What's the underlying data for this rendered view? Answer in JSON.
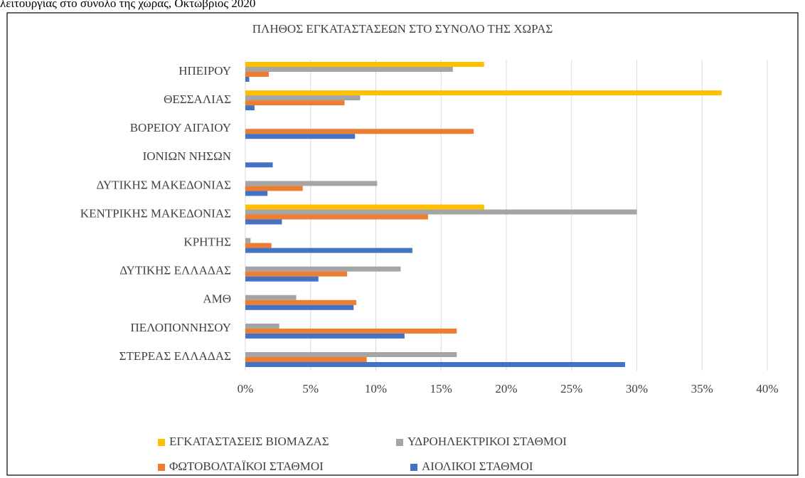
{
  "caption": "λειτουργίας στο σύνολο της χώρας, Οκτώβριος 2020",
  "chart_data": {
    "type": "hbar",
    "title": "ΠΛΗΘΟΣ ΕΓΚΑΤΑΣΤΑΣΕΩΝ  ΣΤΟ ΣΥΝΟΛΟ ΤΗΣ ΧΩΡΑΣ",
    "categories": [
      "ΗΠΕΙΡΟΥ",
      "ΘΕΣΣΑΛΙΑΣ",
      "ΒΟΡΕΙΟΥ ΑΙΓΑΙΟΥ",
      "ΙΟΝΙΩΝ ΝΗΣΩΝ",
      "ΔΥΤΙΚΗΣ ΜΑΚΕΔΟΝΙΑΣ",
      "ΚΕΝΤΡΙΚΗΣ ΜΑΚΕΔΟΝΙΑΣ",
      "ΚΡΗΤΗΣ",
      "ΔΥΤΙΚΗΣ ΕΛΛΑΔΑΣ",
      "ΑΜΘ",
      "ΠΕΛΟΠΟΝΝΗΣΟΥ",
      "ΣΤΕΡΕΑΣ ΕΛΛΑΔΑΣ"
    ],
    "series": [
      {
        "name": "ΕΓΚΑΤΑΣΤΑΣΕΙΣ  ΒΙΟΜΑΖΑΣ",
        "color": "#ffc000",
        "values": [
          18.3,
          36.5,
          0,
          0,
          0,
          18.3,
          0,
          0,
          0,
          0,
          0
        ]
      },
      {
        "name": "ΥΔΡΟΗΛΕΚΤΡΙΚΟΙ ΣΤΑΘΜΟΙ",
        "color": "#a5a5a5",
        "values": [
          15.9,
          8.8,
          0,
          0,
          10.1,
          30.0,
          0.4,
          11.9,
          3.9,
          2.6,
          16.2
        ]
      },
      {
        "name": "ΦΩΤΟΒΟΛΤΑΪΚΟΙ ΣΤΑΘΜΟΙ",
        "color": "#ed7d31",
        "values": [
          1.8,
          7.6,
          17.5,
          0,
          4.4,
          14.0,
          2.0,
          7.8,
          8.5,
          16.2,
          9.3
        ]
      },
      {
        "name": "ΑΙΟΛΙΚΟΙ ΣΤΑΘΜΟΙ",
        "color": "#4472c4",
        "values": [
          0.3,
          0.7,
          8.4,
          2.1,
          1.7,
          2.8,
          12.8,
          5.6,
          8.3,
          12.2,
          29.1
        ]
      }
    ],
    "xlim": [
      0,
      40
    ],
    "xticks": [
      {
        "value": 0,
        "label": "0%"
      },
      {
        "value": 5,
        "label": "5%"
      },
      {
        "value": 10,
        "label": "10%"
      },
      {
        "value": 15,
        "label": "15%"
      },
      {
        "value": 20,
        "label": "20%"
      },
      {
        "value": 25,
        "label": "25%"
      },
      {
        "value": 30,
        "label": "30%"
      },
      {
        "value": 35,
        "label": "35%"
      },
      {
        "value": 40,
        "label": "40%"
      }
    ],
    "grid": true,
    "legend": "bottom"
  }
}
